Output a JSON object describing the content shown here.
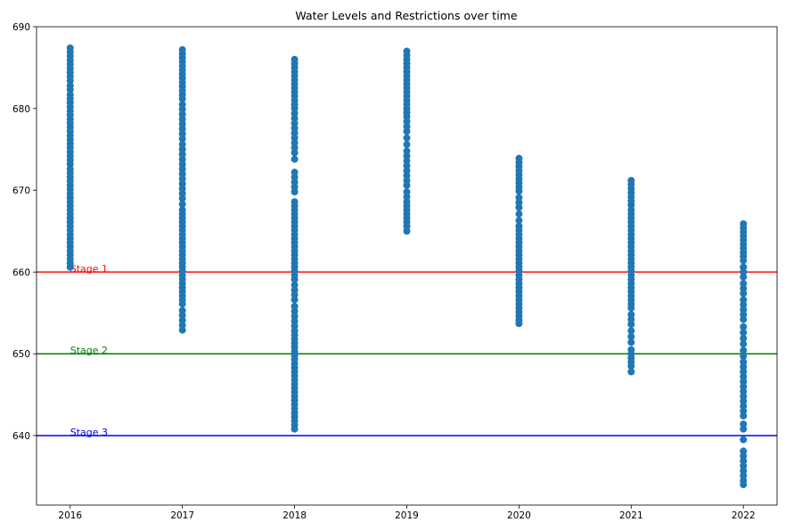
{
  "chart_data": {
    "type": "scatter",
    "title": "Water Levels and Restrictions over time",
    "xlabel": "",
    "ylabel": "",
    "xlim": [
      2015.7,
      2022.3
    ],
    "ylim": [
      631.5,
      690.0
    ],
    "x_ticks": [
      2016,
      2017,
      2018,
      2019,
      2020,
      2021,
      2022
    ],
    "y_ticks": [
      640,
      650,
      660,
      670,
      680,
      690
    ],
    "grid": false,
    "point_color": "#1f77b4",
    "series": [
      {
        "x": 2016,
        "values": [
          687.4,
          686.9,
          686.4,
          685.9,
          685.4,
          684.9,
          684.4,
          683.9,
          683.4,
          682.8,
          682.3,
          681.7,
          681.2,
          680.7,
          680.2,
          679.7,
          679.2,
          678.7,
          678.2,
          677.7,
          677.2,
          676.7,
          676.2,
          675.7,
          675.2,
          674.7,
          674.2,
          673.7,
          673.2,
          672.6,
          672.1,
          671.6,
          671.1,
          670.6,
          670.1,
          669.6,
          669.1,
          668.6,
          668.1,
          667.6,
          667.1,
          666.6,
          666.1,
          665.6,
          665.1,
          664.6,
          664.1,
          663.6,
          663.1,
          662.6,
          662.1,
          661.6,
          661.1,
          660.6
        ]
      },
      {
        "x": 2017,
        "values": [
          687.2,
          686.7,
          686.2,
          685.7,
          685.2,
          684.7,
          684.2,
          683.7,
          683.2,
          682.7,
          682.2,
          681.7,
          681.2,
          680.5,
          679.9,
          679.3,
          678.7,
          678.1,
          677.5,
          676.9,
          676.3,
          675.6,
          675.0,
          674.4,
          673.8,
          673.2,
          672.6,
          672.0,
          671.4,
          670.8,
          670.2,
          669.6,
          669.0,
          668.3,
          667.6,
          667.1,
          666.6,
          666.1,
          665.6,
          665.1,
          664.6,
          664.1,
          663.6,
          663.1,
          662.6,
          662.1,
          661.6,
          661.1,
          660.6,
          660.1,
          659.6,
          659.1,
          658.6,
          658.1,
          657.6,
          657.1,
          656.6,
          656.1,
          655.3,
          654.7,
          654.1,
          653.5,
          652.9
        ]
      },
      {
        "x": 2018,
        "values": [
          686.0,
          685.5,
          685.0,
          684.5,
          684.0,
          683.5,
          683.0,
          682.5,
          682.0,
          681.5,
          681.0,
          680.5,
          680.0,
          679.4,
          678.8,
          678.2,
          677.6,
          677.0,
          676.4,
          675.8,
          675.2,
          674.6,
          673.8,
          672.2,
          671.6,
          671.0,
          670.4,
          669.8,
          668.6,
          668.1,
          667.6,
          667.1,
          666.6,
          666.1,
          665.6,
          665.1,
          664.6,
          664.1,
          663.6,
          663.1,
          662.6,
          662.1,
          661.6,
          661.1,
          660.6,
          660.1,
          659.6,
          659.1,
          658.4,
          657.8,
          657.2,
          656.6,
          655.8,
          655.2,
          654.6,
          654.0,
          653.4,
          652.8,
          652.3,
          651.8,
          651.3,
          650.8,
          650.3,
          649.8,
          649.3,
          648.8,
          648.3,
          647.8,
          647.3,
          646.8,
          646.3,
          645.8,
          645.3,
          644.8,
          644.3,
          643.8,
          643.3,
          642.8,
          642.3,
          641.8,
          641.3,
          640.8
        ]
      },
      {
        "x": 2019,
        "values": [
          687.0,
          686.5,
          686.0,
          685.5,
          685.0,
          684.5,
          684.0,
          683.5,
          683.0,
          682.5,
          682.0,
          681.5,
          681.0,
          680.5,
          680.0,
          679.5,
          679.0,
          678.4,
          677.8,
          677.2,
          676.4,
          675.6,
          674.8,
          674.2,
          673.6,
          673.0,
          672.4,
          671.8,
          671.2,
          670.6,
          669.8,
          669.2,
          668.6,
          668.1,
          667.6,
          667.1,
          666.6,
          666.1,
          665.6,
          665.0
        ]
      },
      {
        "x": 2020,
        "values": [
          673.9,
          673.4,
          672.9,
          672.4,
          671.9,
          671.4,
          670.9,
          670.4,
          669.9,
          669.1,
          668.5,
          667.9,
          667.1,
          666.3,
          665.6,
          665.1,
          664.6,
          664.1,
          663.6,
          663.1,
          662.6,
          662.1,
          661.6,
          661.1,
          660.6,
          660.1,
          659.6,
          659.1,
          658.6,
          658.1,
          657.6,
          657.1,
          656.6,
          656.1,
          655.6,
          655.1,
          654.6,
          654.1,
          653.7
        ]
      },
      {
        "x": 2021,
        "values": [
          671.2,
          670.7,
          670.2,
          669.7,
          669.2,
          668.7,
          668.2,
          667.6,
          667.1,
          666.6,
          666.1,
          665.6,
          665.1,
          664.6,
          664.1,
          663.6,
          663.1,
          662.6,
          662.1,
          661.6,
          661.1,
          660.6,
          660.1,
          659.6,
          659.1,
          658.6,
          658.1,
          657.6,
          657.1,
          656.6,
          656.1,
          655.6,
          654.8,
          654.2,
          653.6,
          652.8,
          652.1,
          651.4,
          650.5,
          650.0,
          649.5,
          649.0,
          648.5,
          647.8
        ]
      },
      {
        "x": 2022,
        "values": [
          665.9,
          665.4,
          664.9,
          664.4,
          663.9,
          663.4,
          662.9,
          662.4,
          661.9,
          661.4,
          660.6,
          660.0,
          659.4,
          658.6,
          658.0,
          657.4,
          656.6,
          656.0,
          655.4,
          654.8,
          654.2,
          653.3,
          652.6,
          651.9,
          651.2,
          650.4,
          649.7,
          649.0,
          648.4,
          647.8,
          647.2,
          646.6,
          646.0,
          645.4,
          644.8,
          644.2,
          643.6,
          643.0,
          642.4,
          641.4,
          640.8,
          639.5,
          638.1,
          637.5,
          636.9,
          636.3,
          635.7,
          635.1,
          634.5,
          634.0
        ]
      }
    ],
    "reference_lines": [
      {
        "y": 660,
        "label": "Stage 1",
        "color": "#ff0000"
      },
      {
        "y": 650,
        "label": "Stage 2",
        "color": "#008000"
      },
      {
        "y": 640,
        "label": "Stage 3",
        "color": "#0000ff"
      }
    ]
  }
}
